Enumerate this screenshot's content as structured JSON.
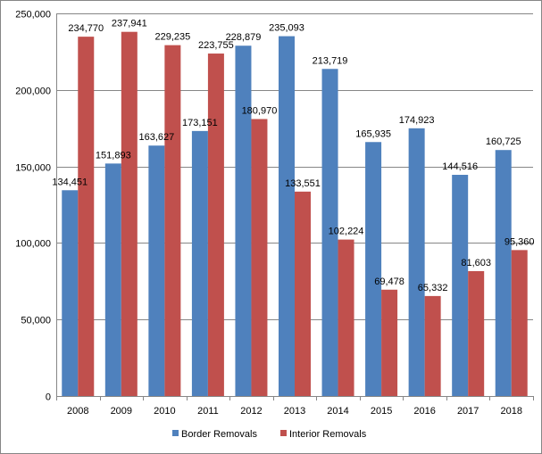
{
  "chart_data": {
    "type": "bar",
    "title": "",
    "xlabel": "",
    "ylabel": "",
    "categories": [
      "2008",
      "2009",
      "2010",
      "2011",
      "2012",
      "2013",
      "2014",
      "2015",
      "2016",
      "2017",
      "2018"
    ],
    "series": [
      {
        "name": "Border Removals",
        "color": "#4f81bd",
        "values": [
          134451,
          151893,
          163627,
          173151,
          228879,
          235093,
          213719,
          165935,
          174923,
          144516,
          160725
        ],
        "labels": [
          "134,451",
          "151,893",
          "163,627",
          "173,151",
          "228,879",
          "235,093",
          "213,719",
          "165,935",
          "174,923",
          "144,516",
          "160,725"
        ]
      },
      {
        "name": "Interior Removals",
        "color": "#c0504d",
        "values": [
          234770,
          237941,
          229235,
          223755,
          180970,
          133551,
          102224,
          69478,
          65332,
          81603,
          95360
        ],
        "labels": [
          "234,770",
          "237,941",
          "229,235",
          "223,755",
          "180,970",
          "133,551",
          "102,224",
          "69,478",
          "65,332",
          "81,603",
          "95,360"
        ]
      }
    ],
    "ylim": [
      0,
      250000
    ],
    "yticks": [
      0,
      50000,
      100000,
      150000,
      200000,
      250000
    ],
    "ytick_labels": [
      "0",
      "50,000",
      "100,000",
      "150,000",
      "200,000",
      "250,000"
    ],
    "grid": true,
    "legend_position": "bottom"
  }
}
